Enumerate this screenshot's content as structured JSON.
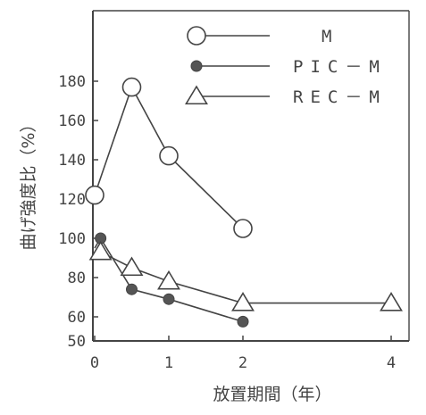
{
  "chart_data": {
    "type": "line",
    "xlabel": "放置期間（年）",
    "ylabel": "曲げ強度比（%）",
    "xlim": [
      0,
      4.2
    ],
    "ylim": [
      50,
      182
    ],
    "x_ticks": [
      0,
      1,
      2,
      4
    ],
    "x_tick_labels": [
      "0",
      "1",
      "2",
      "4"
    ],
    "y_ticks": [
      50,
      60,
      80,
      100,
      120,
      140,
      160,
      180
    ],
    "y_tick_labels": [
      "50",
      "60",
      "80",
      "100",
      "120",
      "140",
      "160",
      "180"
    ],
    "grid": false,
    "legend_position": "top-right",
    "series": [
      {
        "name": "M",
        "marker": "circle-open",
        "x": [
          0,
          0.5,
          1,
          2
        ],
        "y": [
          122,
          177,
          142,
          105
        ]
      },
      {
        "name": "PIC－M",
        "marker": "circle-filled",
        "x": [
          0,
          0.08,
          0.5,
          1,
          2
        ],
        "y": [
          95,
          100,
          74,
          69,
          58
        ]
      },
      {
        "name": "REC－M",
        "marker": "triangle-open",
        "x": [
          0,
          0.08,
          0.5,
          1,
          2,
          4
        ],
        "y": [
          92,
          93,
          85,
          78,
          67,
          67
        ]
      }
    ]
  },
  "colors": {
    "ink": "#444444",
    "background": "#ffffff"
  }
}
